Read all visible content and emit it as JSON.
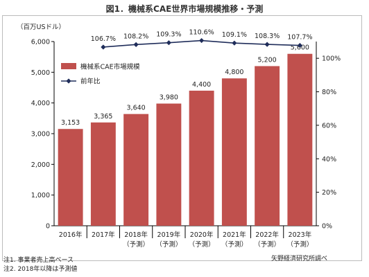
{
  "title": "図1．機械系CAE世界市場規模推移・予測",
  "chart_data": {
    "type": "bar",
    "ylabel": "（百万USドル）",
    "ylim": [
      0,
      6000
    ],
    "y_ticks": [
      "0",
      "1,000",
      "2,000",
      "3,000",
      "4,000",
      "5,000",
      "6,000"
    ],
    "y2lim": [
      0,
      110
    ],
    "y2_ticks": [
      "0%",
      "20%",
      "40%",
      "60%",
      "80%",
      "100%"
    ],
    "categories": [
      {
        "year": "2016年",
        "sub": ""
      },
      {
        "year": "2017年",
        "sub": ""
      },
      {
        "year": "2018年",
        "sub": "（予測）"
      },
      {
        "year": "2019年",
        "sub": "（予測）"
      },
      {
        "year": "2020年",
        "sub": "（予測）"
      },
      {
        "year": "2021年",
        "sub": "（予測）"
      },
      {
        "year": "2022年",
        "sub": "（予測）"
      },
      {
        "year": "2023年",
        "sub": "（予測）"
      }
    ],
    "series": [
      {
        "name": "機械系CAE市場規模",
        "kind": "bar",
        "color": "#c0504d",
        "values": [
          3153,
          3365,
          3640,
          3980,
          4400,
          4800,
          5200,
          5600
        ],
        "labels": [
          "3,153",
          "3,365",
          "3,640",
          "3,980",
          "4,400",
          "4,800",
          "5,200",
          "5,600"
        ]
      },
      {
        "name": "前年比",
        "kind": "line",
        "axis": "right",
        "color": "#1f2d5a",
        "values": [
          null,
          106.7,
          108.2,
          109.3,
          110.6,
          109.1,
          108.3,
          107.7
        ],
        "labels": [
          "",
          "106.7%",
          "108.2%",
          "109.3%",
          "110.6%",
          "109.1%",
          "108.3%",
          "107.7%"
        ]
      }
    ],
    "legend_position": "top-left"
  },
  "notes": [
    "注1. 事業者売上高ベース",
    "注2. 2018年以降は予測値"
  ],
  "source": "矢野経済研究所調べ"
}
